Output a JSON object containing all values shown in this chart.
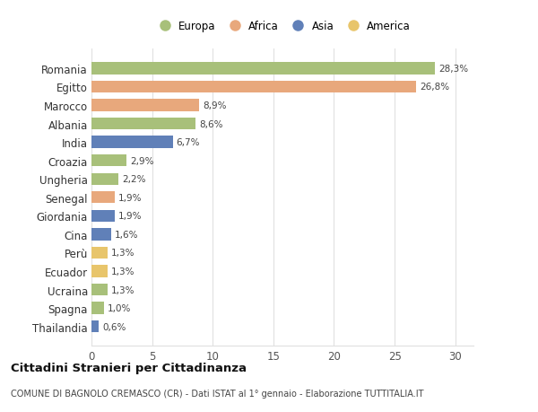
{
  "categories": [
    "Thailandia",
    "Spagna",
    "Ucraina",
    "Ecuador",
    "Perù",
    "Cina",
    "Giordania",
    "Senegal",
    "Ungheria",
    "Croazia",
    "India",
    "Albania",
    "Marocco",
    "Egitto",
    "Romania"
  ],
  "values": [
    0.6,
    1.0,
    1.3,
    1.3,
    1.3,
    1.6,
    1.9,
    1.9,
    2.2,
    2.9,
    6.7,
    8.6,
    8.9,
    26.8,
    28.3
  ],
  "labels": [
    "0,6%",
    "1,0%",
    "1,3%",
    "1,3%",
    "1,3%",
    "1,6%",
    "1,9%",
    "1,9%",
    "2,2%",
    "2,9%",
    "6,7%",
    "8,6%",
    "8,9%",
    "26,8%",
    "28,3%"
  ],
  "colors": [
    "#6080b8",
    "#a8c07a",
    "#a8c07a",
    "#e8c56b",
    "#e8c56b",
    "#6080b8",
    "#6080b8",
    "#e8a87c",
    "#a8c07a",
    "#a8c07a",
    "#6080b8",
    "#a8c07a",
    "#e8a87c",
    "#e8a87c",
    "#a8c07a"
  ],
  "legend_labels": [
    "Europa",
    "Africa",
    "Asia",
    "America"
  ],
  "legend_colors": [
    "#a8c07a",
    "#e8a87c",
    "#6080b8",
    "#e8c56b"
  ],
  "title": "Cittadini Stranieri per Cittadinanza",
  "subtitle": "COMUNE DI BAGNOLO CREMASCO (CR) - Dati ISTAT al 1° gennaio - Elaborazione TUTTITALIA.IT",
  "xlim": [
    0,
    31.5
  ],
  "xticks": [
    0,
    5,
    10,
    15,
    20,
    25,
    30
  ],
  "background_color": "#ffffff",
  "grid_color": "#e0e0e0",
  "bar_height": 0.65
}
